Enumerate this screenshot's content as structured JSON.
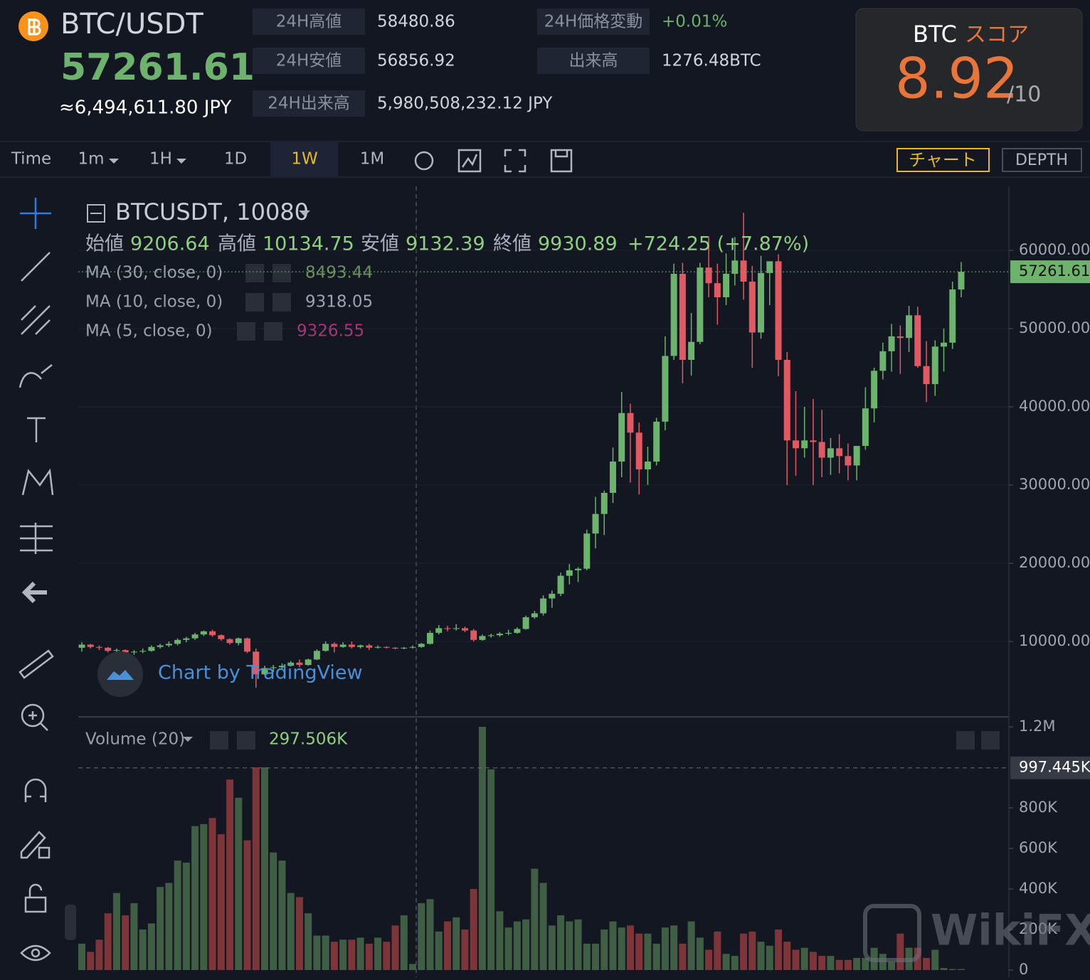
{
  "header": {
    "symbol": "BTC/USDT",
    "price": 57261.61,
    "price_jpy": "≈6,494,611.80 JPY",
    "stats": [
      {
        "label": "24H高値",
        "value": 58480.86
      },
      {
        "label": "24H安値",
        "value": 56856.92
      },
      {
        "label": "24H出来高",
        "value": "5,980,508,232.12 JPY"
      },
      {
        "label": "24H価格変動",
        "value": "+0.01%"
      },
      {
        "label": "出来高",
        "value": "1276.48BTC"
      }
    ],
    "score": {
      "coin": "BTC",
      "label": "スコア",
      "value": 8.92,
      "max": "/10"
    }
  },
  "toolbar": {
    "intervals": [
      "Time",
      "1m",
      "1H",
      "1D",
      "1W",
      "1M"
    ],
    "buttons": [
      "チャート",
      "DEPTH"
    ]
  },
  "chart_data": {
    "type": "candlestick",
    "title": "BTCUSDT, 10080",
    "ohlc_legend": [
      {
        "label": "始値",
        "value": 9206.64
      },
      {
        "label": "高値",
        "value": 10134.75
      },
      {
        "label": "安値",
        "value": 9132.39
      },
      {
        "label": "終値",
        "value": 9930.89
      }
    ],
    "change": "+724.25 (+7.87%)",
    "indicators": [
      {
        "name": "MA (30, close, 0)",
        "value": 8493.44,
        "color": "#6b8f5e"
      },
      {
        "name": "MA (10, close, 0)",
        "value": 9318.05,
        "color": "#9aa3b2"
      },
      {
        "name": "MA (5, close, 0)",
        "value": 9326.55,
        "color": "#a8357a"
      }
    ],
    "watermark": "Chart by TradingView",
    "logo": "WikiFX",
    "up_color": "#6db26d",
    "down_color": "#e15a63",
    "ylim": [
      364,
      68182
    ],
    "yticks": [
      {
        "value": 10000,
        "label": "10000.00"
      },
      {
        "value": 20000,
        "label": "20000.00"
      },
      {
        "value": 30000,
        "label": "30000.00"
      },
      {
        "value": 40000,
        "label": "40000.00"
      },
      {
        "value": 50000,
        "label": "50000.00"
      },
      {
        "value": 60000,
        "label": "60000.00"
      }
    ],
    "last_price": {
      "value": 57261.61,
      "label": "57261.61"
    },
    "candles": [
      [
        9200,
        9900,
        8700,
        9600
      ],
      [
        9600,
        9700,
        9100,
        9300
      ],
      [
        9300,
        9500,
        8900,
        9200
      ],
      [
        9200,
        9300,
        8600,
        8800
      ],
      [
        8800,
        9100,
        8500,
        8900
      ],
      [
        8900,
        9000,
        8400,
        8600
      ],
      [
        8600,
        8900,
        8300,
        8700
      ],
      [
        8700,
        9100,
        8500,
        8800
      ],
      [
        8800,
        9500,
        8700,
        9300
      ],
      [
        9300,
        9700,
        9100,
        9500
      ],
      [
        9500,
        10000,
        9300,
        9700
      ],
      [
        9700,
        10400,
        9500,
        10200
      ],
      [
        10200,
        10600,
        9900,
        10400
      ],
      [
        10400,
        11100,
        10200,
        10900
      ],
      [
        10900,
        11400,
        10700,
        11300
      ],
      [
        11300,
        11500,
        10600,
        10800
      ],
      [
        10800,
        10900,
        10100,
        10300
      ],
      [
        10300,
        10400,
        9600,
        9800
      ],
      [
        9800,
        10500,
        9500,
        10400
      ],
      [
        10400,
        10500,
        8500,
        8700
      ],
      [
        8700,
        9100,
        4100,
        5800
      ],
      [
        5800,
        6900,
        5700,
        6600
      ],
      [
        6600,
        7000,
        6100,
        6700
      ],
      [
        6700,
        7200,
        6500,
        6900
      ],
      [
        6900,
        7500,
        6800,
        7300
      ],
      [
        7300,
        7700,
        6700,
        7000
      ],
      [
        7000,
        7800,
        6900,
        7700
      ],
      [
        7700,
        9000,
        7600,
        8800
      ],
      [
        8800,
        10000,
        8700,
        9700
      ],
      [
        9700,
        9900,
        8600,
        9300
      ],
      [
        9300,
        9900,
        9200,
        9600
      ],
      [
        9600,
        10000,
        9100,
        9300
      ],
      [
        9300,
        9600,
        9100,
        9500
      ],
      [
        9500,
        9700,
        8900,
        9200
      ],
      [
        9200,
        9500,
        9100,
        9300
      ],
      [
        9300,
        9400,
        9100,
        9200
      ],
      [
        9200,
        9300,
        9000,
        9100
      ],
      [
        9100,
        9300,
        9000,
        9200
      ],
      [
        9200,
        9500,
        9100,
        9300
      ],
      [
        9300,
        9800,
        9200,
        9700
      ],
      [
        9700,
        11400,
        9600,
        11100
      ],
      [
        11100,
        12100,
        10900,
        11700
      ],
      [
        11700,
        12000,
        11300,
        11600
      ],
      [
        11600,
        12200,
        11400,
        11700
      ],
      [
        11700,
        11900,
        11200,
        11400
      ],
      [
        11400,
        11600,
        10000,
        10200
      ],
      [
        10200,
        10900,
        10100,
        10700
      ],
      [
        10700,
        11000,
        10500,
        10800
      ],
      [
        10800,
        11200,
        10600,
        11000
      ],
      [
        11000,
        11500,
        10800,
        11100
      ],
      [
        11100,
        11800,
        11000,
        11600
      ],
      [
        11600,
        13300,
        11500,
        13100
      ],
      [
        13100,
        13900,
        12900,
        13600
      ],
      [
        13600,
        15900,
        13300,
        15500
      ],
      [
        15500,
        16500,
        14300,
        16100
      ],
      [
        16100,
        18800,
        15800,
        18400
      ],
      [
        18400,
        19900,
        17300,
        19100
      ],
      [
        19100,
        19500,
        17600,
        19300
      ],
      [
        19300,
        24300,
        19100,
        23800
      ],
      [
        23800,
        28500,
        21900,
        26300
      ],
      [
        26300,
        29300,
        23600,
        29000
      ],
      [
        29000,
        34800,
        27700,
        33000
      ],
      [
        33000,
        41900,
        31000,
        39200
      ],
      [
        39200,
        40400,
        30300,
        36700
      ],
      [
        36700,
        38000,
        28800,
        32000
      ],
      [
        32000,
        34900,
        30000,
        33000
      ],
      [
        33000,
        38600,
        32500,
        38100
      ],
      [
        38100,
        49000,
        37000,
        46500
      ],
      [
        46500,
        58300,
        46000,
        57000
      ],
      [
        57000,
        58400,
        43000,
        46000
      ],
      [
        46000,
        52000,
        44000,
        48300
      ],
      [
        48300,
        58400,
        48000,
        57800
      ],
      [
        57800,
        61800,
        54000,
        55800
      ],
      [
        55800,
        58300,
        50500,
        54000
      ],
      [
        54000,
        59600,
        53000,
        57000
      ],
      [
        57000,
        61700,
        55500,
        58700
      ],
      [
        58700,
        64800,
        53700,
        56000
      ],
      [
        56000,
        58000,
        45000,
        49500
      ],
      [
        49500,
        59300,
        48700,
        57100
      ],
      [
        57100,
        58600,
        53000,
        58600
      ],
      [
        58600,
        59500,
        43900,
        46000
      ],
      [
        46000,
        47000,
        30000,
        35700
      ],
      [
        35700,
        42000,
        31200,
        34700
      ],
      [
        34700,
        40000,
        33500,
        35700
      ],
      [
        35700,
        41000,
        30000,
        35500
      ],
      [
        35500,
        39600,
        31000,
        33500
      ],
      [
        33500,
        36000,
        31300,
        34700
      ],
      [
        34700,
        36500,
        31500,
        33700
      ],
      [
        33700,
        35300,
        30600,
        32500
      ],
      [
        32500,
        35000,
        30600,
        35000
      ],
      [
        35000,
        42500,
        34500,
        39800
      ],
      [
        39800,
        45000,
        38000,
        44600
      ],
      [
        44600,
        48200,
        43500,
        47100
      ],
      [
        47100,
        50600,
        44500,
        49000
      ],
      [
        49000,
        50400,
        44200,
        48800
      ],
      [
        48800,
        52900,
        47000,
        51700
      ],
      [
        51700,
        52800,
        45000,
        45200
      ],
      [
        45200,
        48400,
        40600,
        42900
      ],
      [
        42900,
        48500,
        41400,
        47700
      ],
      [
        47700,
        50000,
        44500,
        48200
      ],
      [
        48200,
        56000,
        47400,
        55000
      ],
      [
        55000,
        58500,
        54000,
        57261.61
      ]
    ],
    "volume": {
      "title": "Volume (20)",
      "value_label": "297.506K",
      "up_color": "#3f5e43",
      "down_color": "#7d3539",
      "ylim": [
        -35000,
        1242000
      ],
      "yticks": [
        0,
        {
          "value": 200000,
          "label": "200K"
        },
        {
          "value": 400000,
          "label": "400K"
        },
        {
          "value": 600000,
          "label": "600K"
        },
        {
          "value": 800000,
          "label": "800K"
        },
        {
          "value": 1200000,
          "label": "1.2M"
        }
      ],
      "current": {
        "value": 997445,
        "label": "997.445K"
      },
      "values": [
        130000,
        90000,
        150000,
        280000,
        380000,
        270000,
        330000,
        200000,
        230000,
        410000,
        430000,
        540000,
        530000,
        710000,
        720000,
        750000,
        670000,
        940000,
        850000,
        640000,
        1000000,
        1000000,
        580000,
        540000,
        380000,
        360000,
        280000,
        170000,
        170000,
        140000,
        150000,
        150000,
        160000,
        130000,
        160000,
        140000,
        220000,
        270000,
        30000,
        330000,
        350000,
        190000,
        240000,
        260000,
        200000,
        400000,
        1200000,
        990000,
        290000,
        210000,
        240000,
        250000,
        500000,
        430000,
        220000,
        270000,
        240000,
        250000,
        130000,
        130000,
        200000,
        240000,
        210000,
        220000,
        180000,
        180000,
        130000,
        210000,
        220000,
        130000,
        240000,
        160000,
        100000,
        190000,
        80000,
        70000,
        180000,
        190000,
        140000,
        120000,
        200000,
        140000,
        100000,
        110000,
        90000,
        70000,
        70000,
        50000,
        50000,
        60000,
        60000,
        110000,
        80000,
        40000,
        180000,
        110000,
        110000,
        60000,
        100000,
        10000,
        5000,
        5000
      ]
    }
  }
}
